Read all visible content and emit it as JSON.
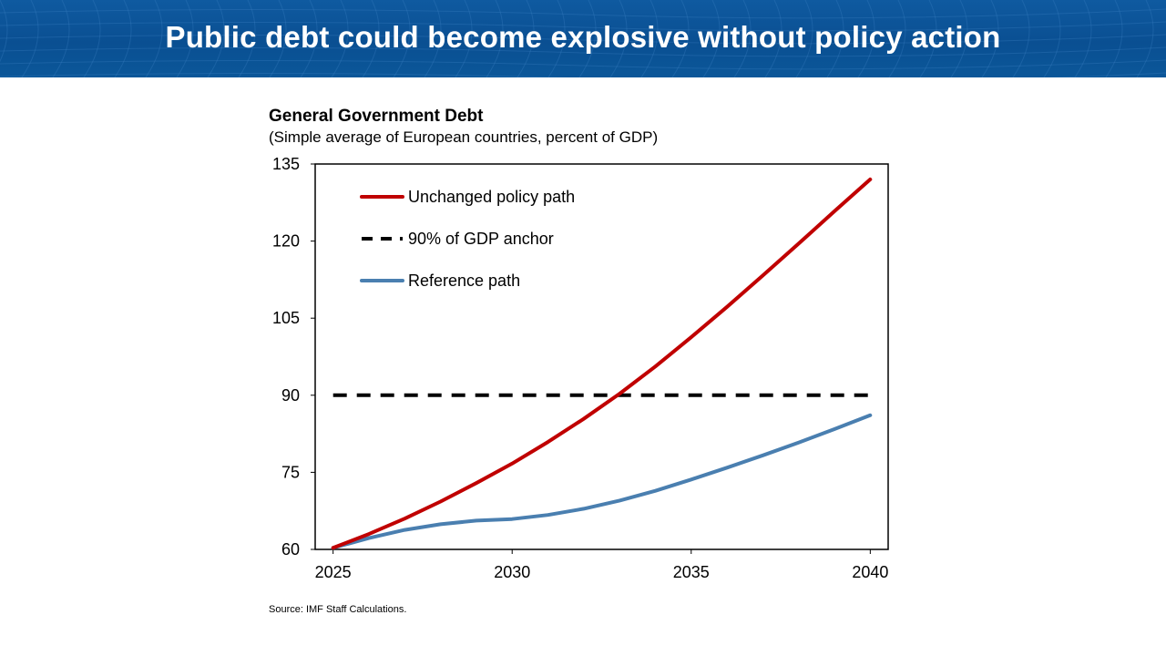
{
  "slide": {
    "title": "Public debt could become explosive without policy action",
    "banner_color": "#0b5799"
  },
  "chart_data": {
    "type": "line",
    "title": "General Government Debt",
    "subtitle": "(Simple average of European countries, percent of GDP)",
    "xlabel": "",
    "ylabel": "",
    "x": [
      2025,
      2026,
      2027,
      2028,
      2029,
      2030,
      2031,
      2032,
      2033,
      2034,
      2035,
      2036,
      2037,
      2038,
      2039,
      2040
    ],
    "xlim": [
      2024.5,
      2040.5
    ],
    "ylim": [
      60,
      135
    ],
    "x_ticks": [
      2025,
      2030,
      2035,
      2040
    ],
    "y_ticks": [
      60,
      75,
      90,
      105,
      120,
      135
    ],
    "grid": false,
    "legend_position": "top-left",
    "series": [
      {
        "name": "Unchanged policy path",
        "color": "#c00000",
        "style": "solid",
        "values": [
          60.3,
          63.0,
          66.0,
          69.3,
          72.9,
          76.7,
          80.9,
          85.4,
          90.3,
          95.6,
          101.3,
          107.2,
          113.3,
          119.5,
          125.8,
          132.0
        ]
      },
      {
        "name": "90% of GDP anchor",
        "color": "#000000",
        "style": "dashed",
        "values": [
          90,
          90,
          90,
          90,
          90,
          90,
          90,
          90,
          90,
          90,
          90,
          90,
          90,
          90,
          90,
          90
        ]
      },
      {
        "name": "Reference path",
        "color": "#4a7fb0",
        "style": "solid",
        "values": [
          60.3,
          62.2,
          63.8,
          64.9,
          65.6,
          65.9,
          66.7,
          67.9,
          69.5,
          71.4,
          73.6,
          75.9,
          78.3,
          80.8,
          83.4,
          86.1
        ]
      }
    ],
    "source": "Source: IMF Staff Calculations."
  }
}
